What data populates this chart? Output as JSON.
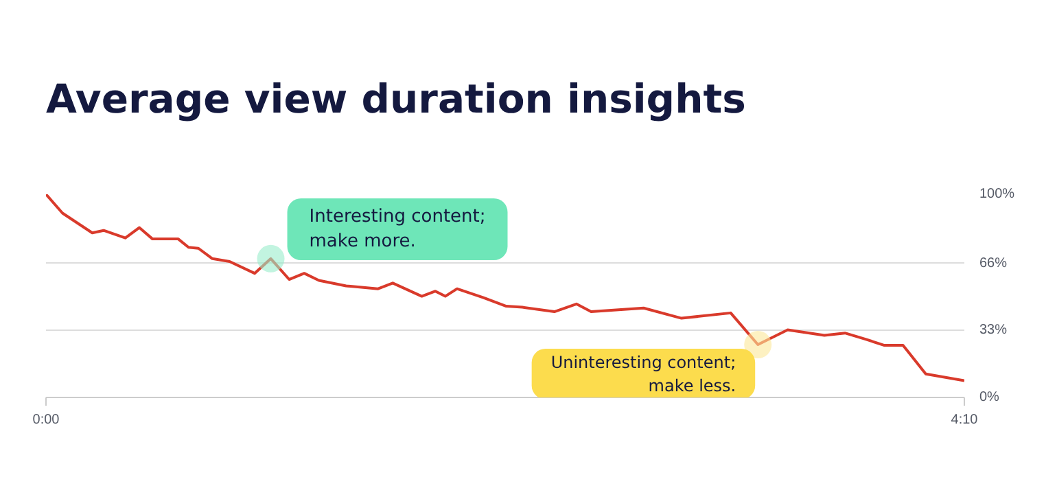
{
  "chart_data": {
    "type": "line",
    "title": "Average view duration insights",
    "x": [
      0,
      4.5,
      12.6,
      15.7,
      21.6,
      25.4,
      29.0,
      36.0,
      38.8,
      41.5,
      45.3,
      50.0,
      56.8,
      61.2,
      66.2,
      70.3,
      74.3,
      81.7,
      90.4,
      94.4,
      102.3,
      106.0,
      108.7,
      111.9,
      119.1,
      125.3,
      129.7,
      138.4,
      144.4,
      148.4,
      162.7,
      173.0,
      186.4,
      193.8,
      201.9,
      211.9,
      217.5,
      223.1,
      228.1,
      233.3,
      239.5,
      250
    ],
    "series": [
      {
        "color": "#d93a2b",
        "values": [
          100,
          90.7,
          81.0,
          82.2,
          78.5,
          83.6,
          78.0,
          78.0,
          73.9,
          73.4,
          68.3,
          66.9,
          61.1,
          68.3,
          58.1,
          61.1,
          57.6,
          54.9,
          53.5,
          56.3,
          49.8,
          52.3,
          49.8,
          53.5,
          49.1,
          44.9,
          44.4,
          42.2,
          46.0,
          42.2,
          44.0,
          39.0,
          41.6,
          26.0,
          33.3,
          30.6,
          31.7,
          28.7,
          25.7,
          25.7,
          11.6,
          8.3
        ]
      }
    ],
    "xlim": [
      0,
      250
    ],
    "xticks": [
      {
        "value": 0,
        "label": "0:00"
      },
      {
        "value": 250,
        "label": "4:10"
      }
    ],
    "ylim": [
      0,
      100
    ],
    "yticks": [
      {
        "value": 0,
        "label": "0%"
      },
      {
        "value": 33,
        "label": "33%"
      },
      {
        "value": 66,
        "label": "66%"
      },
      {
        "value": 100,
        "label": "100%"
      }
    ],
    "grid": "y",
    "line_style": "solid",
    "annotations": [
      {
        "text": "Interesting content;\nmake more.",
        "x": 61.2,
        "y": 68.3
      },
      {
        "text": "Uninteresting content;\nmake less.",
        "x": 193.8,
        "y": 26.0
      }
    ]
  }
}
